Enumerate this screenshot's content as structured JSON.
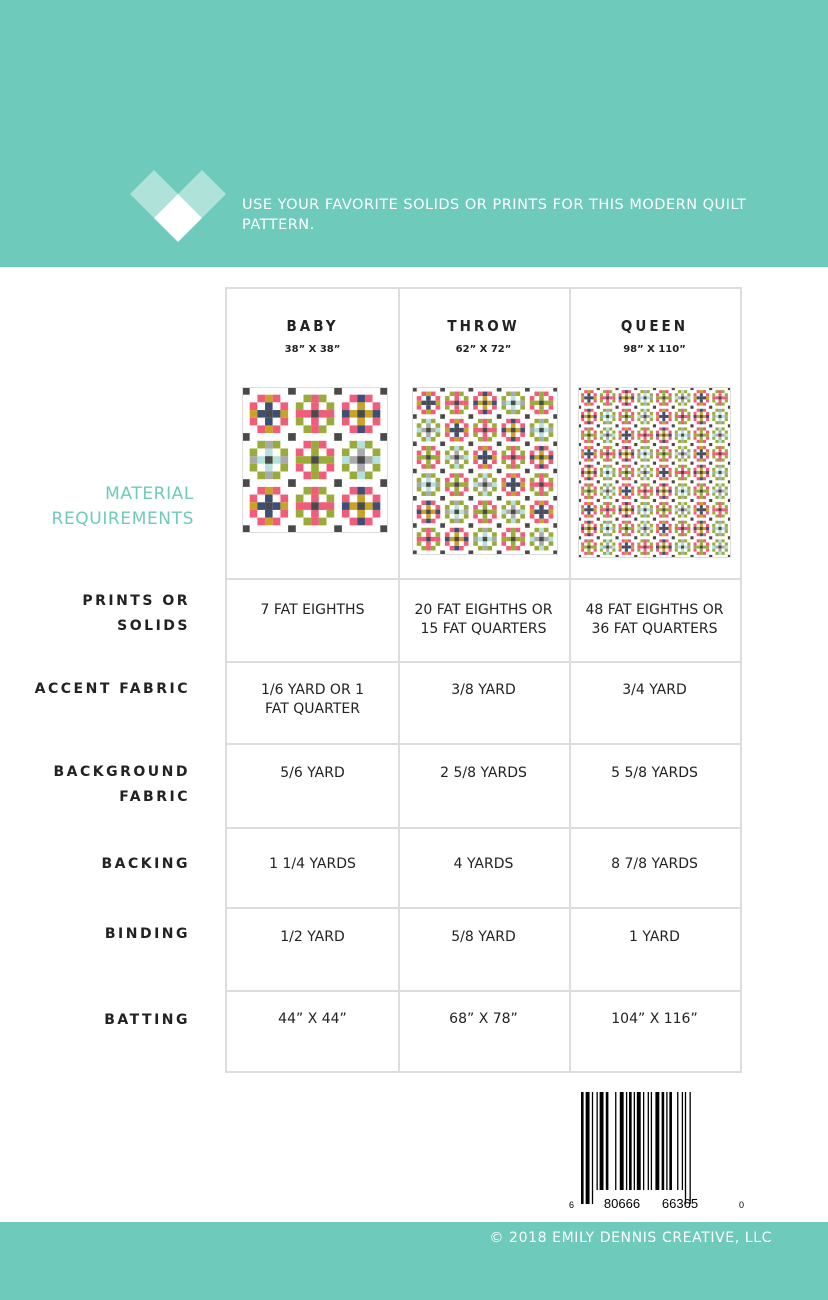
{
  "header": {
    "tagline": "USE YOUR FAVORITE SOLIDS OR PRINTS FOR THIS MODERN QUILT PATTERN.",
    "logo": "heart-diamond-logo"
  },
  "section_title": "MATERIAL REQUIREMENTS",
  "columns": [
    {
      "name": "BABY",
      "size": "38” X 38”"
    },
    {
      "name": "THROW",
      "size": "62” X 72”"
    },
    {
      "name": "QUEEN",
      "size": "98” X 110”"
    }
  ],
  "rows": [
    {
      "label": "PRINTS OR SOLIDS",
      "values": [
        "7 FAT EIGHTHS",
        "20 FAT EIGHTHS OR 15 FAT QUARTERS",
        "48 FAT EIGHTHS OR 36 FAT QUARTERS"
      ]
    },
    {
      "label": "ACCENT FABRIC",
      "values": [
        "1/6 YARD OR 1 FAT QUARTER",
        "3/8 YARD",
        "3/4 YARD"
      ]
    },
    {
      "label": "BACKGROUND FABRIC",
      "values": [
        "5/6 YARD",
        "2 5/8 YARDS",
        "5 5/8 YARDS"
      ]
    },
    {
      "label": "BACKING",
      "values": [
        "1 1/4 YARDS",
        "4 YARDS",
        "8 7/8 YARDS"
      ]
    },
    {
      "label": "BINDING",
      "values": [
        "1/2 YARD",
        "5/8 YARD",
        "1 YARD"
      ]
    },
    {
      "label": "BATTING",
      "values": [
        "44” X 44”",
        "68” X 78”",
        "104” X 116”"
      ]
    }
  ],
  "barcode": {
    "digits": [
      "6",
      "80666",
      "66365",
      "0"
    ]
  },
  "footer": {
    "copyright": "© 2018 EMILY DENNIS CREATIVE, LLC"
  },
  "colors": {
    "brand": "#6ecabb",
    "accent": "#4a4a4a",
    "palette": [
      "#3e4f75",
      "#ef5d7a",
      "#c9a227",
      "#b5e0dc",
      "#9aab3a",
      "#aaaaaa"
    ]
  }
}
